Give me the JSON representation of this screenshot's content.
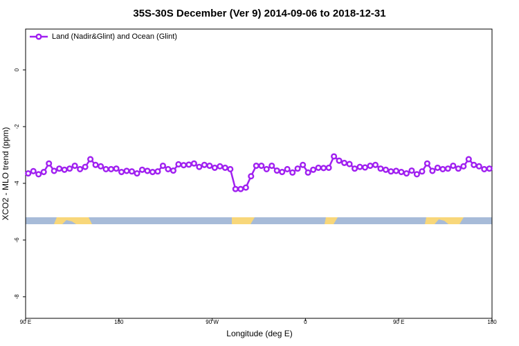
{
  "chart_data": {
    "type": "line",
    "title": "35S-30S December (Ver 9)   2014-09-06 to 2018-12-31",
    "x_label": "Longitude (deg E)",
    "y_label": "XCO2 - MLO trend (ppm)",
    "legend_position": "upper left",
    "xlim": [
      90,
      540
    ],
    "ylim": [
      -8.76,
      1.44
    ],
    "xticks": [
      {
        "value": 90,
        "label": "90 E"
      },
      180,
      {
        "value": 270,
        "label": "90 W"
      },
      {
        "value": 360,
        "label": "0"
      },
      {
        "value": 450,
        "label": "90 E"
      },
      {
        "value": 540,
        "label": "180"
      }
    ],
    "yticks": [
      -8,
      -6,
      -4,
      -2,
      0
    ],
    "x": [
      92.5,
      97.5,
      102.5,
      107.5,
      112.5,
      117.5,
      122.5,
      127.5,
      132.5,
      137.5,
      142.5,
      147.5,
      152.5,
      157.5,
      162.5,
      167.5,
      172.5,
      177.5,
      182.5,
      187.5,
      192.5,
      197.5,
      202.5,
      207.5,
      212.5,
      217.5,
      222.5,
      227.5,
      232.5,
      237.5,
      242.5,
      247.5,
      252.5,
      257.5,
      262.5,
      267.5,
      272.5,
      277.5,
      282.5,
      287.5,
      292.5,
      297.5,
      302.5,
      307.5,
      312.5,
      317.5,
      322.5,
      327.5,
      332.5,
      337.5,
      342.5,
      347.5,
      352.5,
      357.5,
      362.5,
      367.5,
      372.5,
      377.5,
      382.5,
      387.5,
      392.5,
      397.5,
      402.5,
      407.5,
      412.5,
      417.5,
      422.5,
      427.5,
      432.5,
      437.5,
      442.5,
      447.5,
      452.5,
      457.5,
      462.5,
      467.5,
      472.5,
      477.5,
      482.5,
      487.5,
      492.5,
      497.5,
      502.5,
      507.5,
      512.5,
      517.5,
      522.5,
      527.5,
      532.5,
      537.5
    ],
    "series": [
      {
        "name": "Land (Nadir&Glint) and Ocean (Glint)",
        "color": "#a020f0",
        "values": [
          -3.65,
          -3.57,
          -3.68,
          -3.6,
          -3.3,
          -3.56,
          -3.48,
          -3.52,
          -3.48,
          -3.38,
          -3.5,
          -3.42,
          -3.15,
          -3.35,
          -3.4,
          -3.5,
          -3.5,
          -3.48,
          -3.6,
          -3.56,
          -3.58,
          -3.65,
          -3.52,
          -3.56,
          -3.6,
          -3.58,
          -3.38,
          -3.5,
          -3.55,
          -3.33,
          -3.36,
          -3.34,
          -3.3,
          -3.42,
          -3.35,
          -3.38,
          -3.45,
          -3.4,
          -3.45,
          -3.5,
          -4.2,
          -4.2,
          -4.15,
          -3.75,
          -3.38,
          -3.38,
          -3.5,
          -3.38,
          -3.55,
          -3.6,
          -3.5,
          -3.62,
          -3.48,
          -3.35,
          -3.62,
          -3.52,
          -3.45,
          -3.46,
          -3.45,
          -3.05,
          -3.2,
          -3.28,
          -3.32,
          -3.48,
          -3.42,
          -3.44,
          -3.38,
          -3.35,
          -3.48,
          -3.52,
          -3.58,
          -3.56,
          -3.6,
          -3.65,
          -3.55,
          -3.68,
          -3.58,
          -3.3,
          -3.56,
          -3.45,
          -3.5,
          -3.48,
          -3.38,
          -3.48,
          -3.4,
          -3.15,
          -3.35,
          -3.4,
          -3.5,
          -3.48
        ]
      }
    ]
  }
}
